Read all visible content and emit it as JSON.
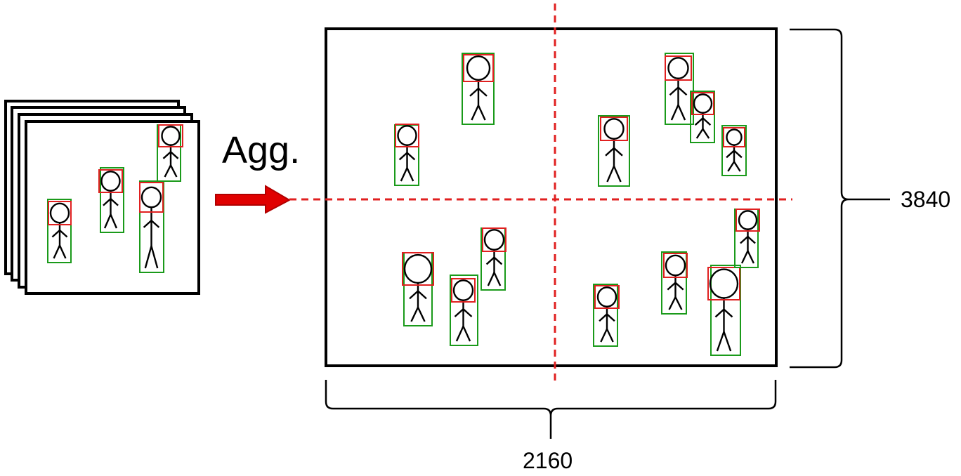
{
  "diagram": {
    "aggregate_label": "Agg.",
    "width_label": "2160",
    "height_label": "3840",
    "colors": {
      "frame": "#000000",
      "head_box": "#e02020",
      "body_box": "#1a9a1a",
      "arrow": "#e00000",
      "grid_line": "#e02020",
      "figure": "#000000"
    }
  }
}
